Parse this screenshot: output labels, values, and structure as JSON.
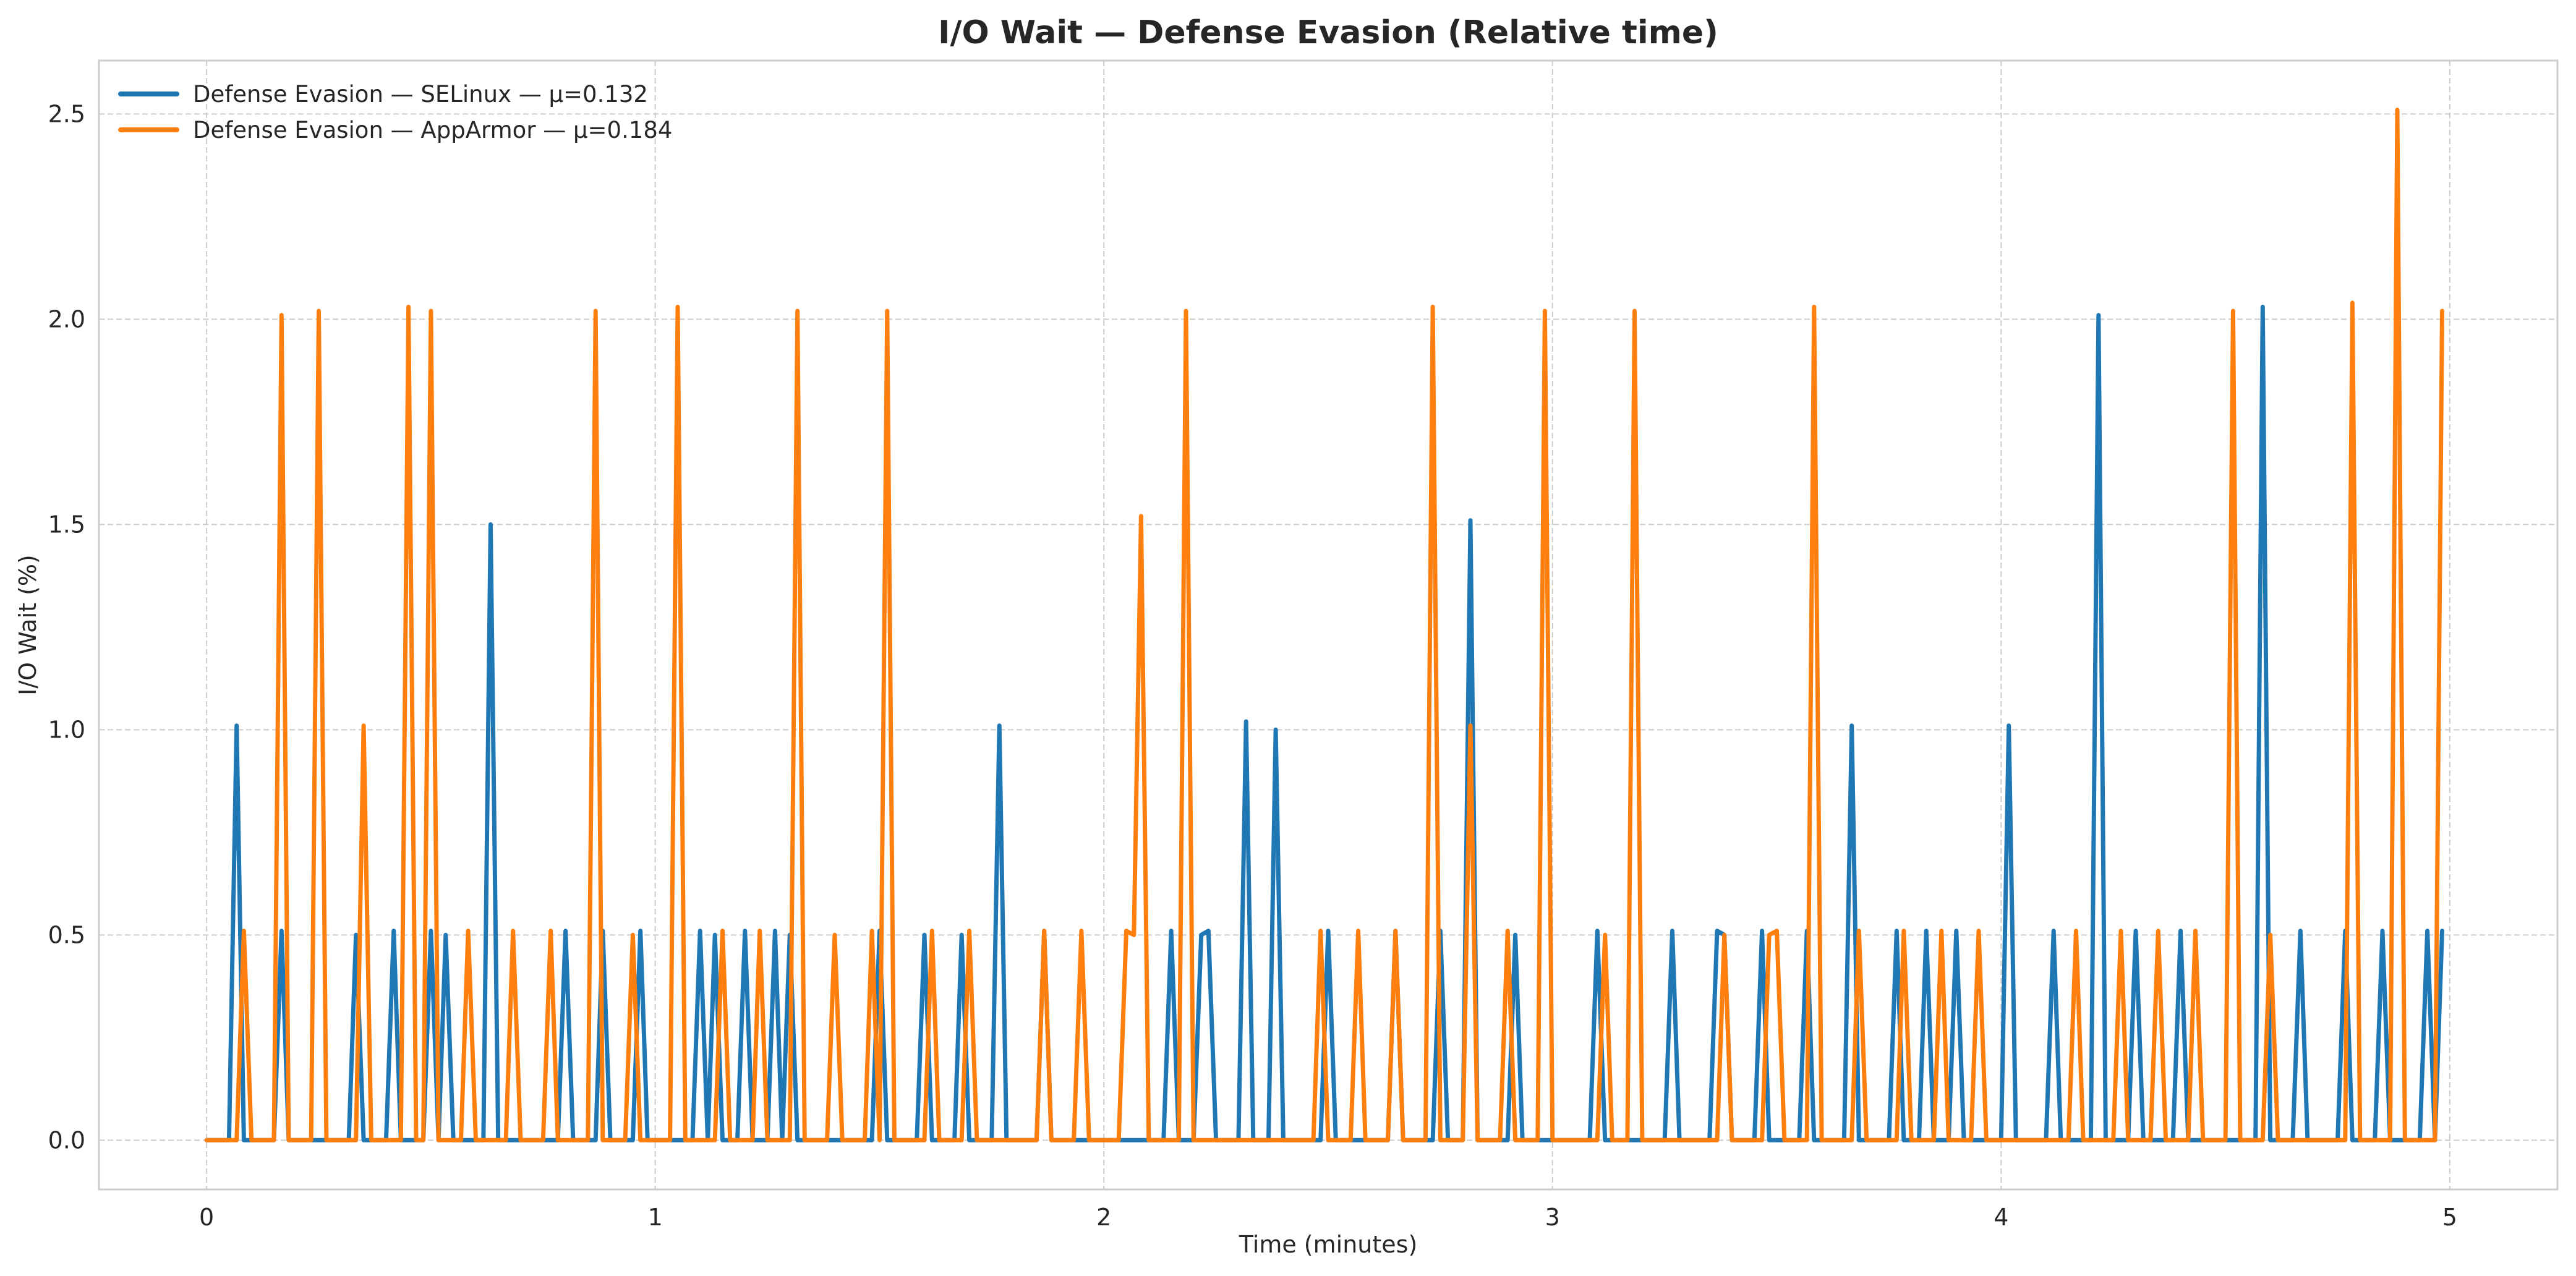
{
  "chart_data": {
    "type": "line",
    "title": "I/O Wait — Defense Evasion (Relative time)",
    "xlabel": "Time (minutes)",
    "ylabel": "I/O Wait (%)",
    "xlim": [
      -0.24,
      5.24
    ],
    "ylim": [
      -0.12,
      2.63
    ],
    "xticks": [
      0,
      1,
      2,
      3,
      4,
      5
    ],
    "yticks": [
      0.0,
      0.5,
      1.0,
      1.5,
      2.0,
      2.5
    ],
    "xtick_labels": [
      "0",
      "1",
      "2",
      "3",
      "4",
      "5"
    ],
    "ytick_labels": [
      "0.0",
      "0.5",
      "1.0",
      "1.5",
      "2.0",
      "2.5"
    ],
    "grid": true,
    "legend": "top-left",
    "series": [
      {
        "name": "Defense Evasion — SELinux — μ=0.132",
        "color": "#1f77b4",
        "points": [
          [
            0,
            0
          ],
          [
            0.05,
            0
          ],
          [
            0.067,
            1.01
          ],
          [
            0.083,
            0
          ],
          [
            0.15,
            0
          ],
          [
            0.167,
            0.51
          ],
          [
            0.183,
            0
          ],
          [
            0.317,
            0
          ],
          [
            0.333,
            0.5
          ],
          [
            0.35,
            0
          ],
          [
            0.4,
            0
          ],
          [
            0.417,
            0.51
          ],
          [
            0.433,
            0
          ],
          [
            0.483,
            0
          ],
          [
            0.5,
            0.51
          ],
          [
            0.517,
            0
          ],
          [
            0.533,
            0.5
          ],
          [
            0.55,
            0
          ],
          [
            0.617,
            0
          ],
          [
            0.633,
            1.5
          ],
          [
            0.65,
            0
          ],
          [
            0.783,
            0
          ],
          [
            0.8,
            0.51
          ],
          [
            0.817,
            0
          ],
          [
            0.867,
            0
          ],
          [
            0.883,
            0.51
          ],
          [
            0.9,
            0
          ],
          [
            0.95,
            0
          ],
          [
            0.967,
            0.51
          ],
          [
            0.983,
            0
          ],
          [
            1.083,
            0
          ],
          [
            1.1,
            0.51
          ],
          [
            1.117,
            0
          ],
          [
            1.133,
            0.5
          ],
          [
            1.15,
            0
          ],
          [
            1.183,
            0
          ],
          [
            1.2,
            0.51
          ],
          [
            1.217,
            0
          ],
          [
            1.25,
            0
          ],
          [
            1.267,
            0.51
          ],
          [
            1.283,
            0
          ],
          [
            1.3,
            0.5
          ],
          [
            1.317,
            0
          ],
          [
            1.483,
            0
          ],
          [
            1.5,
            0.51
          ],
          [
            1.517,
            0
          ],
          [
            1.583,
            0
          ],
          [
            1.6,
            0.5
          ],
          [
            1.617,
            0
          ],
          [
            1.667,
            0
          ],
          [
            1.683,
            0.5
          ],
          [
            1.7,
            0
          ],
          [
            1.75,
            0
          ],
          [
            1.767,
            1.01
          ],
          [
            1.783,
            0
          ],
          [
            1.85,
            0
          ],
          [
            1.867,
            0.51
          ],
          [
            1.883,
            0
          ],
          [
            2.133,
            0
          ],
          [
            2.15,
            0.51
          ],
          [
            2.167,
            0
          ],
          [
            2.2,
            0
          ],
          [
            2.217,
            0.5
          ],
          [
            2.233,
            0.51
          ],
          [
            2.25,
            0
          ],
          [
            2.3,
            0
          ],
          [
            2.317,
            1.02
          ],
          [
            2.333,
            0
          ],
          [
            2.367,
            0
          ],
          [
            2.383,
            1.0
          ],
          [
            2.4,
            0
          ],
          [
            2.483,
            0
          ],
          [
            2.5,
            0.51
          ],
          [
            2.517,
            0
          ],
          [
            2.633,
            0
          ],
          [
            2.65,
            0.51
          ],
          [
            2.667,
            0
          ],
          [
            2.733,
            0
          ],
          [
            2.75,
            0.51
          ],
          [
            2.767,
            0
          ],
          [
            2.8,
            0
          ],
          [
            2.817,
            1.51
          ],
          [
            2.833,
            0
          ],
          [
            2.9,
            0
          ],
          [
            2.917,
            0.5
          ],
          [
            2.933,
            0
          ],
          [
            3.083,
            0
          ],
          [
            3.1,
            0.51
          ],
          [
            3.117,
            0
          ],
          [
            3.25,
            0
          ],
          [
            3.267,
            0.51
          ],
          [
            3.283,
            0
          ],
          [
            3.35,
            0
          ],
          [
            3.367,
            0.51
          ],
          [
            3.383,
            0.5
          ],
          [
            3.4,
            0
          ],
          [
            3.45,
            0
          ],
          [
            3.467,
            0.51
          ],
          [
            3.483,
            0
          ],
          [
            3.55,
            0
          ],
          [
            3.567,
            0.51
          ],
          [
            3.583,
            0
          ],
          [
            3.65,
            0
          ],
          [
            3.667,
            1.01
          ],
          [
            3.683,
            0
          ],
          [
            3.75,
            0
          ],
          [
            3.767,
            0.51
          ],
          [
            3.783,
            0
          ],
          [
            3.817,
            0
          ],
          [
            3.833,
            0.51
          ],
          [
            3.85,
            0
          ],
          [
            3.883,
            0
          ],
          [
            3.9,
            0.51
          ],
          [
            3.917,
            0
          ],
          [
            4.0,
            0
          ],
          [
            4.017,
            1.01
          ],
          [
            4.033,
            0
          ],
          [
            4.1,
            0
          ],
          [
            4.117,
            0.51
          ],
          [
            4.133,
            0
          ],
          [
            4.2,
            0
          ],
          [
            4.217,
            2.01
          ],
          [
            4.233,
            0
          ],
          [
            4.283,
            0
          ],
          [
            4.3,
            0.51
          ],
          [
            4.317,
            0
          ],
          [
            4.383,
            0
          ],
          [
            4.4,
            0.51
          ],
          [
            4.417,
            0
          ],
          [
            4.567,
            0
          ],
          [
            4.583,
            2.03
          ],
          [
            4.6,
            0
          ],
          [
            4.65,
            0
          ],
          [
            4.667,
            0.51
          ],
          [
            4.683,
            0
          ],
          [
            4.75,
            0
          ],
          [
            4.767,
            0.51
          ],
          [
            4.783,
            0
          ],
          [
            4.833,
            0
          ],
          [
            4.85,
            0.51
          ],
          [
            4.867,
            0
          ],
          [
            4.933,
            0
          ],
          [
            4.95,
            0.51
          ],
          [
            4.967,
            0
          ],
          [
            4.983,
            0.51
          ]
        ]
      },
      {
        "name": "Defense Evasion — AppArmor — μ=0.184",
        "color": "#ff7f0e",
        "points": [
          [
            0,
            0
          ],
          [
            0.067,
            0
          ],
          [
            0.083,
            0.51
          ],
          [
            0.1,
            0
          ],
          [
            0.15,
            0
          ],
          [
            0.167,
            2.01
          ],
          [
            0.183,
            0
          ],
          [
            0.233,
            0
          ],
          [
            0.25,
            2.02
          ],
          [
            0.267,
            0
          ],
          [
            0.333,
            0
          ],
          [
            0.35,
            1.01
          ],
          [
            0.367,
            0
          ],
          [
            0.433,
            0
          ],
          [
            0.45,
            2.03
          ],
          [
            0.467,
            0
          ],
          [
            0.483,
            0
          ],
          [
            0.5,
            2.02
          ],
          [
            0.517,
            0
          ],
          [
            0.567,
            0
          ],
          [
            0.583,
            0.51
          ],
          [
            0.6,
            0
          ],
          [
            0.667,
            0
          ],
          [
            0.683,
            0.51
          ],
          [
            0.7,
            0
          ],
          [
            0.75,
            0
          ],
          [
            0.767,
            0.51
          ],
          [
            0.783,
            0
          ],
          [
            0.85,
            0
          ],
          [
            0.867,
            2.02
          ],
          [
            0.883,
            0
          ],
          [
            0.933,
            0
          ],
          [
            0.95,
            0.5
          ],
          [
            0.967,
            0
          ],
          [
            1.033,
            0
          ],
          [
            1.05,
            2.03
          ],
          [
            1.067,
            0
          ],
          [
            1.133,
            0
          ],
          [
            1.15,
            0.51
          ],
          [
            1.167,
            0
          ],
          [
            1.217,
            0
          ],
          [
            1.233,
            0.51
          ],
          [
            1.25,
            0
          ],
          [
            1.3,
            0
          ],
          [
            1.317,
            2.02
          ],
          [
            1.333,
            0
          ],
          [
            1.383,
            0
          ],
          [
            1.4,
            0.5
          ],
          [
            1.417,
            0
          ],
          [
            1.467,
            0
          ],
          [
            1.483,
            0.51
          ],
          [
            1.5,
            0
          ],
          [
            1.5,
            0
          ],
          [
            1.517,
            2.02
          ],
          [
            1.533,
            0
          ],
          [
            1.6,
            0
          ],
          [
            1.617,
            0.51
          ],
          [
            1.633,
            0
          ],
          [
            1.683,
            0
          ],
          [
            1.7,
            0.51
          ],
          [
            1.717,
            0
          ],
          [
            1.85,
            0
          ],
          [
            1.867,
            0.51
          ],
          [
            1.883,
            0
          ],
          [
            1.933,
            0
          ],
          [
            1.95,
            0.51
          ],
          [
            1.967,
            0
          ],
          [
            2.033,
            0
          ],
          [
            2.05,
            0.51
          ],
          [
            2.067,
            0.5
          ],
          [
            2.083,
            1.52
          ],
          [
            2.1,
            0
          ],
          [
            2.167,
            0
          ],
          [
            2.183,
            2.02
          ],
          [
            2.2,
            0
          ],
          [
            2.467,
            0
          ],
          [
            2.483,
            0.51
          ],
          [
            2.5,
            0
          ],
          [
            2.55,
            0
          ],
          [
            2.567,
            0.51
          ],
          [
            2.583,
            0
          ],
          [
            2.633,
            0
          ],
          [
            2.65,
            0.51
          ],
          [
            2.667,
            0
          ],
          [
            2.717,
            0
          ],
          [
            2.733,
            2.03
          ],
          [
            2.75,
            0
          ],
          [
            2.8,
            0
          ],
          [
            2.817,
            1.01
          ],
          [
            2.833,
            0
          ],
          [
            2.883,
            0
          ],
          [
            2.9,
            0.51
          ],
          [
            2.917,
            0
          ],
          [
            2.967,
            0
          ],
          [
            2.983,
            2.02
          ],
          [
            3.0,
            0
          ],
          [
            3.1,
            0
          ],
          [
            3.117,
            0.5
          ],
          [
            3.133,
            0
          ],
          [
            3.167,
            0
          ],
          [
            3.183,
            2.02
          ],
          [
            3.2,
            0
          ],
          [
            3.367,
            0
          ],
          [
            3.383,
            0.5
          ],
          [
            3.4,
            0
          ],
          [
            3.467,
            0
          ],
          [
            3.483,
            0.5
          ],
          [
            3.5,
            0.51
          ],
          [
            3.517,
            0
          ],
          [
            3.567,
            0
          ],
          [
            3.583,
            2.03
          ],
          [
            3.6,
            0
          ],
          [
            3.667,
            0
          ],
          [
            3.683,
            0.51
          ],
          [
            3.7,
            0
          ],
          [
            3.767,
            0
          ],
          [
            3.783,
            0.51
          ],
          [
            3.8,
            0
          ],
          [
            3.85,
            0
          ],
          [
            3.867,
            0.51
          ],
          [
            3.883,
            0
          ],
          [
            3.933,
            0
          ],
          [
            3.95,
            0.51
          ],
          [
            3.967,
            0
          ],
          [
            4.15,
            0
          ],
          [
            4.167,
            0.51
          ],
          [
            4.183,
            0
          ],
          [
            4.25,
            0
          ],
          [
            4.267,
            0.51
          ],
          [
            4.283,
            0
          ],
          [
            4.333,
            0
          ],
          [
            4.35,
            0.51
          ],
          [
            4.367,
            0
          ],
          [
            4.417,
            0
          ],
          [
            4.433,
            0.51
          ],
          [
            4.45,
            0
          ],
          [
            4.5,
            0
          ],
          [
            4.517,
            2.02
          ],
          [
            4.533,
            0
          ],
          [
            4.583,
            0
          ],
          [
            4.6,
            0.5
          ],
          [
            4.617,
            0
          ],
          [
            4.767,
            0
          ],
          [
            4.783,
            2.04
          ],
          [
            4.8,
            0
          ],
          [
            4.867,
            0
          ],
          [
            4.883,
            2.51
          ],
          [
            4.9,
            0
          ],
          [
            4.967,
            0
          ],
          [
            4.983,
            2.02
          ]
        ]
      }
    ]
  }
}
